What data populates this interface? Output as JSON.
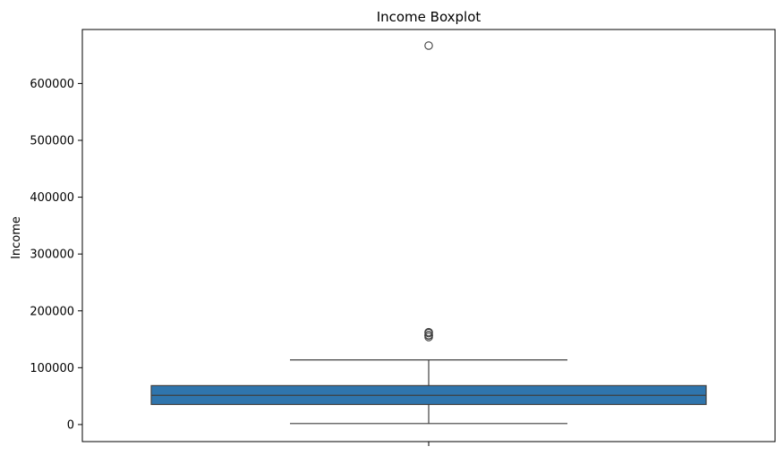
{
  "chart_data": {
    "type": "boxplot",
    "title": "Income Boxplot",
    "xlabel": "",
    "ylabel": "Income",
    "ylim": [
      -30000,
      695000
    ],
    "yticks": [
      0,
      100000,
      200000,
      300000,
      400000,
      500000,
      600000
    ],
    "ytick_labels": [
      "0",
      "100000",
      "200000",
      "300000",
      "400000",
      "500000",
      "600000"
    ],
    "series": [
      {
        "whisker_low": 1730,
        "q1": 35300,
        "median": 51400,
        "q3": 68500,
        "whisker_high": 113700,
        "outliers": [
          153900,
          156900,
          157100,
          157200,
          160800,
          162400,
          666700
        ]
      }
    ],
    "colors": {
      "box_fill": "#2f75ad",
      "line": "#3f3f3f",
      "axis": "#000000"
    },
    "grid": false
  }
}
